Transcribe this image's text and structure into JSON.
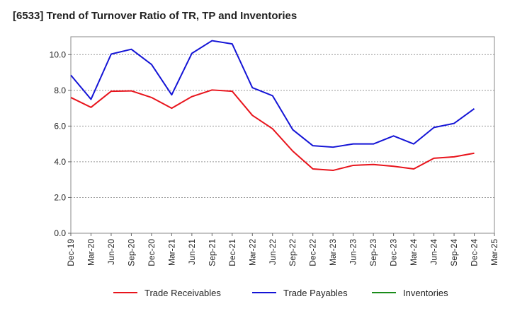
{
  "chart_data": {
    "type": "line",
    "title": "[6533]  Trend of Turnover Ratio of TR, TP and Inventories",
    "xlabel": "",
    "ylabel": "",
    "ylim": [
      0,
      11
    ],
    "yticks": [
      "0.0",
      "2.0",
      "4.0",
      "6.0",
      "8.0",
      "10.0"
    ],
    "ytick_values": [
      0,
      2,
      4,
      6,
      8,
      10
    ],
    "grid": true,
    "legend_position": "bottom",
    "categories": [
      "Dec-19",
      "Mar-20",
      "Jun-20",
      "Sep-20",
      "Dec-20",
      "Mar-21",
      "Jun-21",
      "Sep-21",
      "Dec-21",
      "Mar-22",
      "Jun-22",
      "Sep-22",
      "Dec-22",
      "Mar-23",
      "Jun-23",
      "Sep-23",
      "Dec-23",
      "Mar-24",
      "Jun-24",
      "Sep-24",
      "Dec-24",
      "Mar-25"
    ],
    "series": [
      {
        "name": "Trade Receivables",
        "color": "#e8141c",
        "values": [
          7.6,
          7.05,
          7.95,
          7.97,
          7.6,
          7.0,
          7.65,
          8.02,
          7.95,
          6.6,
          5.85,
          4.6,
          3.6,
          3.52,
          3.8,
          3.85,
          3.75,
          3.6,
          4.2,
          4.28,
          4.48,
          null
        ]
      },
      {
        "name": "Trade Payables",
        "color": "#1414d6",
        "values": [
          8.85,
          7.5,
          10.03,
          10.3,
          9.45,
          7.75,
          10.07,
          10.78,
          10.6,
          8.15,
          7.7,
          5.8,
          4.9,
          4.82,
          5.0,
          5.0,
          5.45,
          5.0,
          5.92,
          6.15,
          6.97,
          null
        ]
      },
      {
        "name": "Inventories",
        "color": "#1a8c1a",
        "values": [
          null,
          null,
          null,
          null,
          null,
          null,
          null,
          null,
          null,
          null,
          null,
          null,
          null,
          null,
          null,
          null,
          null,
          null,
          null,
          null,
          null,
          null
        ]
      }
    ]
  }
}
